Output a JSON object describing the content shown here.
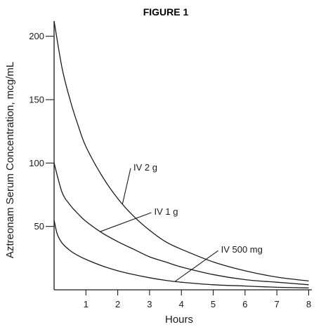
{
  "chart_data": {
    "type": "line",
    "title": "FIGURE 1",
    "xlabel": "Hours",
    "ylabel": "Aztreonam Serum Concentration, mcg/mL",
    "xlim": [
      0,
      8.1
    ],
    "ylim": [
      0,
      212
    ],
    "xticks": [
      1,
      2,
      3,
      4,
      5,
      6,
      7,
      8
    ],
    "yticks": [
      50,
      100,
      150,
      200
    ],
    "grid": false,
    "series": [
      {
        "name": "IV 2 g",
        "x": [
          0,
          0.25,
          0.5,
          0.75,
          1,
          1.5,
          2,
          2.5,
          3,
          3.5,
          4,
          5,
          6,
          7,
          8
        ],
        "y": [
          212,
          175,
          150,
          130,
          113,
          90,
          72,
          58,
          47,
          38,
          32,
          22,
          15,
          10,
          7
        ]
      },
      {
        "name": "IV 1 g",
        "x": [
          0,
          0.25,
          0.5,
          0.75,
          1,
          1.5,
          2,
          2.5,
          3,
          3.5,
          4,
          5,
          6,
          7,
          8
        ],
        "y": [
          100,
          77,
          67,
          60,
          54,
          45,
          38,
          32,
          26,
          22,
          18,
          12,
          8,
          6,
          4
        ]
      },
      {
        "name": "IV 500 mg",
        "x": [
          0,
          0.1,
          0.25,
          0.5,
          0.75,
          1,
          1.5,
          2,
          2.5,
          3,
          3.5,
          4,
          5,
          6,
          7,
          8
        ],
        "y": [
          55,
          44,
          37,
          31,
          27,
          24,
          19,
          15,
          12,
          9.5,
          7.5,
          6,
          4,
          3,
          2,
          1.5
        ]
      }
    ],
    "annotations": [
      {
        "text": "IV 2 g",
        "series": "IV 2 g",
        "x_point": 2.15,
        "label_x": 2.45,
        "label_y": 97
      },
      {
        "text": "IV 1 g",
        "series": "IV 1 g",
        "x_point": 1.45,
        "label_x": 3.1,
        "label_y": 62
      },
      {
        "text": "IV 500 mg",
        "series": "IV 500 mg",
        "x_point": 3.8,
        "label_x": 5.2,
        "label_y": 32
      }
    ]
  }
}
